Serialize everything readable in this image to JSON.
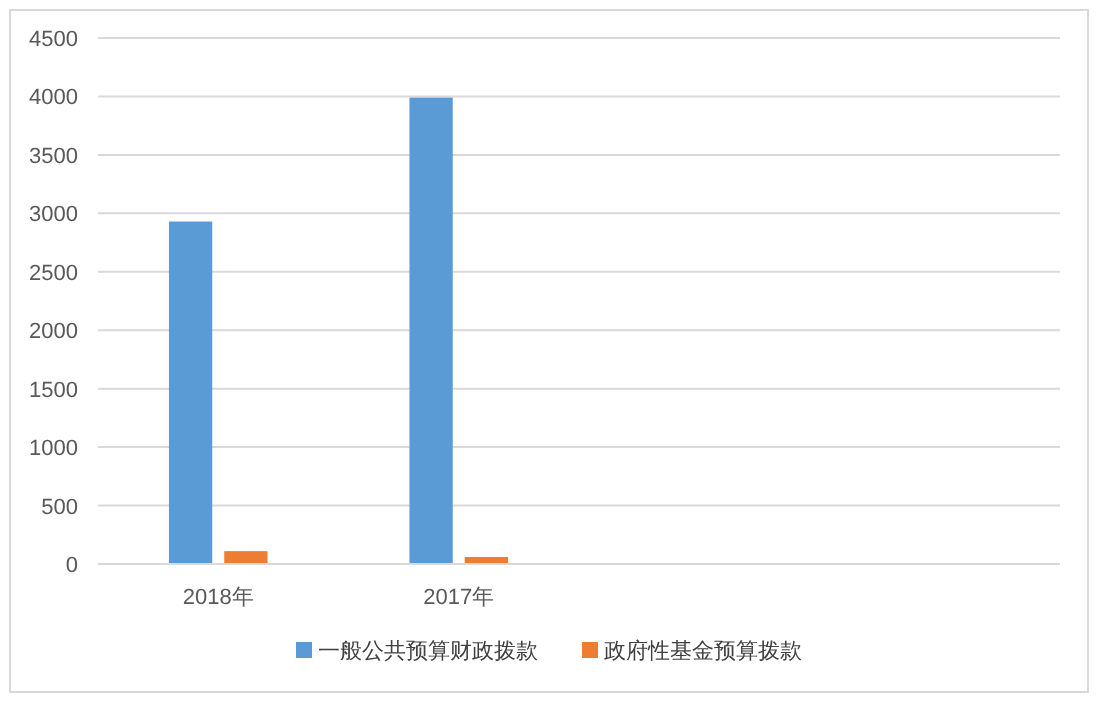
{
  "chart_data": {
    "type": "bar",
    "categories": [
      "2018年",
      "2017年",
      null,
      null
    ],
    "series": [
      {
        "name": "一般公共预算财政拨款",
        "color": "#5b9bd5",
        "values": [
          2930,
          3990,
          null,
          null
        ]
      },
      {
        "name": "政府性基金预算拨款",
        "color": "#ed7d31",
        "values": [
          110,
          60,
          null,
          null
        ]
      }
    ],
    "ylim": [
      0,
      4500
    ],
    "yticks": [
      0,
      500,
      1000,
      1500,
      2000,
      2500,
      3000,
      3500,
      4000,
      4500
    ],
    "grid": "y",
    "legend": "bottom"
  }
}
